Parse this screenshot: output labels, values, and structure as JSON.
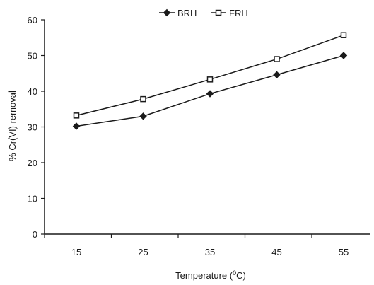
{
  "chart_data": {
    "type": "line",
    "title": "",
    "xlabel_main": "Temperature (",
    "xlabel_sup": "0",
    "xlabel_tail": "C)",
    "ylabel": "% Cr(VI) removal",
    "x": [
      15,
      25,
      35,
      45,
      55
    ],
    "categories": [
      "15",
      "25",
      "35",
      "45",
      "55"
    ],
    "ylim": [
      0,
      60
    ],
    "yticks": [
      0,
      10,
      20,
      30,
      40,
      50,
      60
    ],
    "ytick_labels": [
      "0",
      "10",
      "20",
      "30",
      "40",
      "50",
      "60"
    ],
    "grid": false,
    "legend_position": "top-center",
    "series": [
      {
        "name": "BRH",
        "marker": "diamond-filled",
        "color": "#1a1a1a",
        "values": [
          30.2,
          33.0,
          39.3,
          44.6,
          50.0
        ]
      },
      {
        "name": "FRH",
        "marker": "square-open",
        "color": "#1a1a1a",
        "values": [
          33.2,
          37.8,
          43.3,
          49.0,
          55.7
        ]
      }
    ]
  }
}
